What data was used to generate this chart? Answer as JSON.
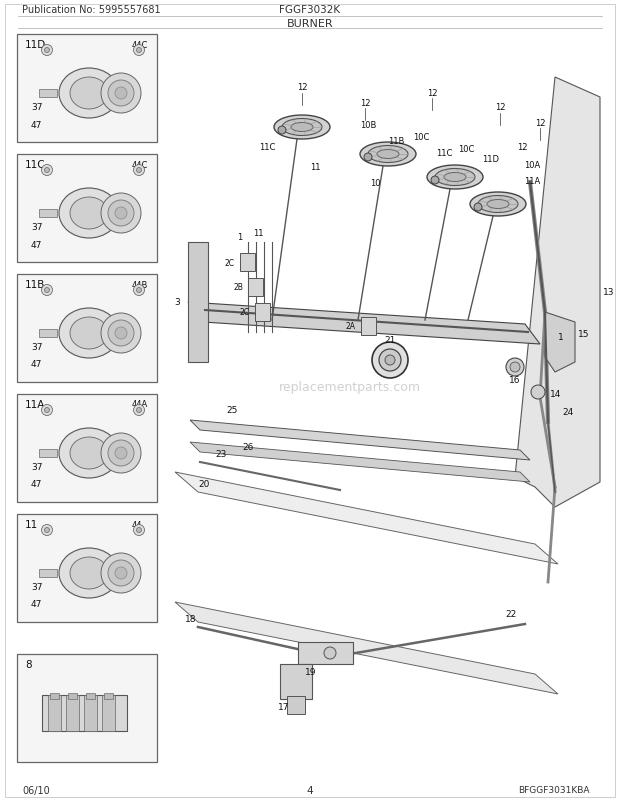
{
  "title": "BURNER",
  "pub_no": "Publication No: 5995557681",
  "model": "FGGF3032K",
  "date": "06/10",
  "page": "4",
  "diagram_id": "BFGGF3031KBA",
  "bg_color": "#ffffff",
  "border_color": "#000000",
  "line_color": "#222222",
  "box_bg": "#f5f5f5",
  "watermark": "replacementparts.com"
}
